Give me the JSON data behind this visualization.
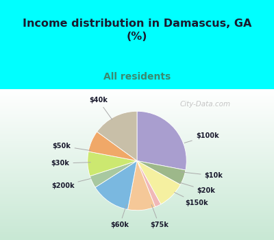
{
  "title": "Income distribution in Damascus, GA\n(%)",
  "subtitle": "All residents",
  "labels": [
    "$100k",
    "$10k",
    "$20k",
    "$150k",
    "$75k",
    "$60k",
    "$200k",
    "$30k",
    "$50k",
    "$40k"
  ],
  "values": [
    28,
    5,
    9,
    2,
    9,
    13,
    4,
    8,
    7,
    15
  ],
  "colors": [
    "#a99ecf",
    "#9db88a",
    "#f5f0a0",
    "#f0b8b8",
    "#f5c898",
    "#7ab8e0",
    "#a8c8a0",
    "#cce870",
    "#f0a868",
    "#c8bfa8"
  ],
  "bg_top": "#00ffff",
  "bg_chart_top": "#ffffff",
  "bg_chart_bot": "#c8e8d0",
  "title_color": "#1a1a2e",
  "subtitle_color": "#3a8a70",
  "watermark": "City-Data.com"
}
